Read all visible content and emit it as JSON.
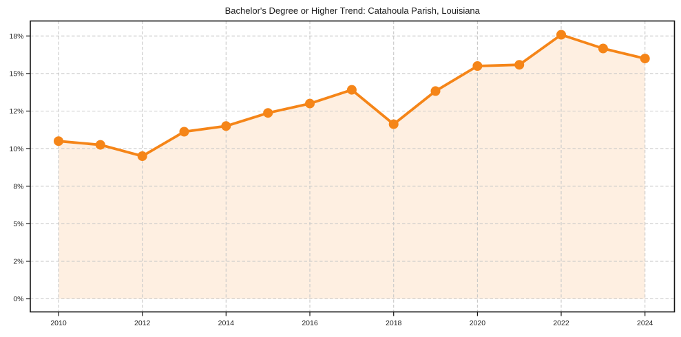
{
  "chart_data": {
    "type": "line",
    "title": "Bachelor's Degree or Higher Trend: Catahoula Parish, Louisiana",
    "xlabel": "",
    "ylabel": "",
    "x": [
      2010,
      2011,
      2012,
      2013,
      2014,
      2015,
      2016,
      2017,
      2018,
      2019,
      2020,
      2021,
      2022,
      2023,
      2024
    ],
    "values": [
      10.4,
      10.2,
      9.6,
      10.9,
      11.2,
      11.9,
      12.6,
      13.7,
      11.3,
      13.6,
      15.6,
      15.7,
      18.1,
      17.0,
      16.2
    ],
    "unit": "%",
    "x_range": [
      2010,
      2024
    ],
    "x_tick_years": [
      2010,
      2012,
      2014,
      2016,
      2018,
      2020,
      2022,
      2024
    ],
    "x_tick_labels": [
      "2010",
      "2012",
      "2014",
      "2016",
      "2018",
      "2020",
      "2022",
      "2024"
    ],
    "y_tick_values": [
      0,
      2,
      5,
      8,
      10,
      12,
      15,
      18
    ],
    "y_tick_labels": [
      "0%",
      "2%",
      "5%",
      "8%",
      "10%",
      "12%",
      "15%",
      "18%"
    ],
    "grid": true,
    "grid_style": "dashed",
    "legend_position": "none",
    "marker": "circle",
    "area_under_line": true,
    "colors": {
      "line": "#F58518",
      "marker": "#F58518",
      "area": "#F58518",
      "area_opacity": 0.13,
      "grid": "#C8C8C8",
      "axis": "#141414",
      "text": "#1c1c1c",
      "background": "#FFFFFF"
    }
  }
}
